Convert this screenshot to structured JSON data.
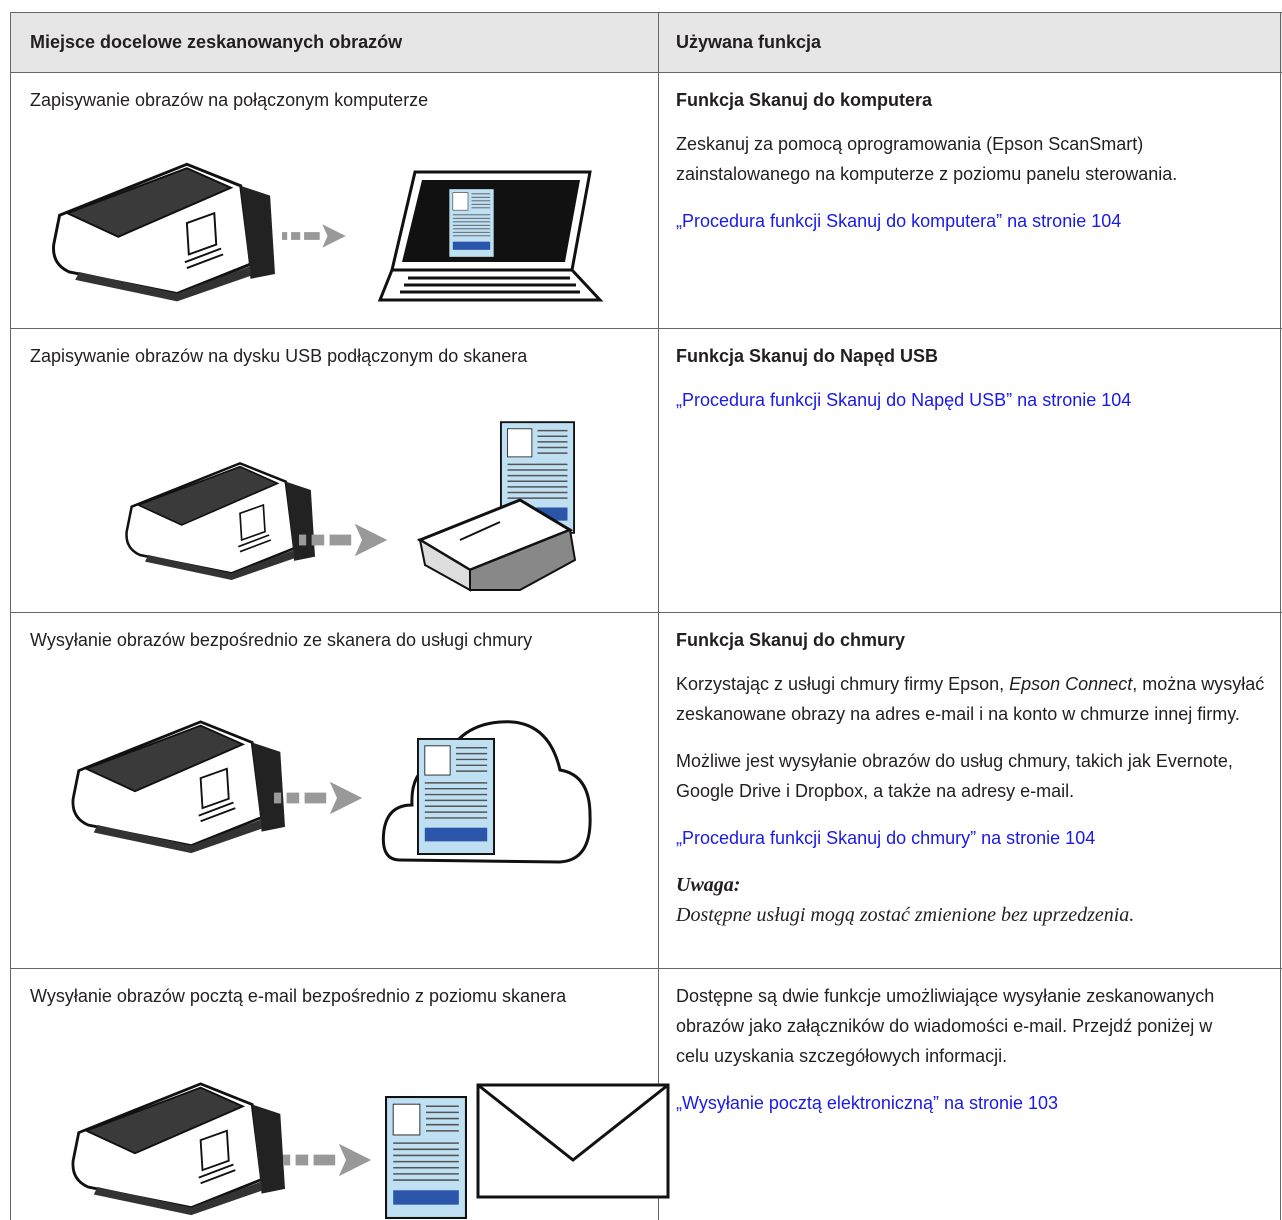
{
  "table": {
    "header": [
      "Miejsce docelowe zeskanowanych obrazów",
      "Używana funkcja"
    ],
    "rows": [
      {
        "destination": "Zapisywanie obrazów na połączonym komputerze",
        "function_title": "Funkcja Skanuj do komputera",
        "paragraphs": [
          "Zeskanuj za pomocą oprogramowania (Epson ScanSmart) zainstalowanego na komputerze z poziomu panelu sterowania."
        ],
        "link": "„Procedura funkcji Skanuj do komputera” na stronie 104"
      },
      {
        "destination": "Zapisywanie obrazów na dysku USB podłączonym do skanera",
        "function_title": "Funkcja Skanuj do Napęd USB",
        "link": "„Procedura funkcji Skanuj do Napęd USB” na stronie 104"
      },
      {
        "destination": "Wysyłanie obrazów bezpośrednio ze skanera do usługi chmury",
        "function_title": "Funkcja Skanuj do chmury",
        "paragraph_parts": [
          "Korzystając z usługi chmury firmy Epson, ",
          "Epson Connect",
          ", można wysyłać zeskanowane obrazy na adres e-mail i na konto w chmurze innej firmy."
        ],
        "paragraphs": [
          "Możliwe jest wysyłanie obrazów do usług chmury, takich jak Evernote, Google Drive i Dropbox, a także na adresy e-mail."
        ],
        "link": "„Procedura funkcji Skanuj do chmury” na stronie 104",
        "note_title": "Uwaga:",
        "note_text": "Dostępne usługi mogą zostać zmienione bez uprzedzenia."
      },
      {
        "destination": "Wysyłanie obrazów pocztą e-mail bezpośrednio z poziomu skanera",
        "paragraphs": [
          "Dostępne są dwie funkcje umożliwiające wysyłanie zeskanowanych obrazów jako załączników do wiadomości e-mail. Przejdź poniżej w celu uzyskania szczegółowych informacji."
        ],
        "link": "„Wysyłanie pocztą elektroniczną” na stronie 103"
      }
    ]
  }
}
